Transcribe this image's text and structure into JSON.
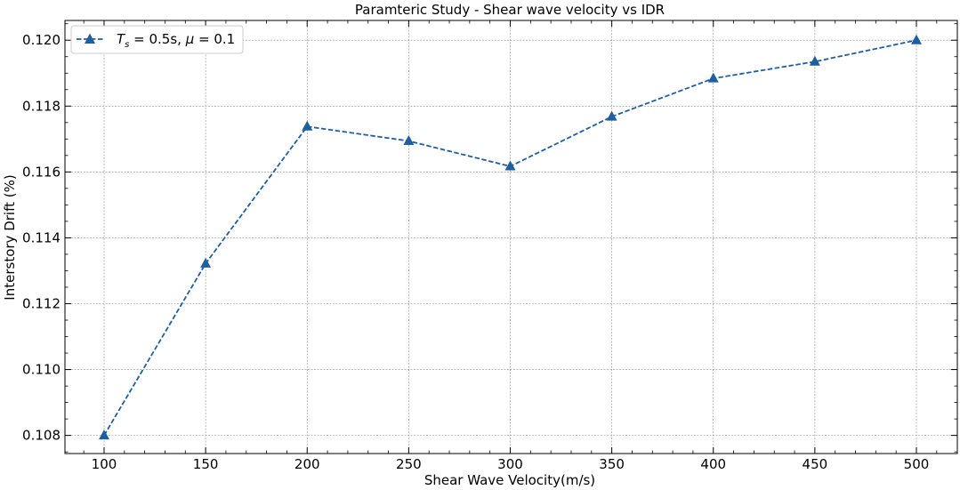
{
  "chart_data": {
    "type": "line",
    "title": "Paramteric Study - Shear wave velocity vs IDR",
    "xlabel": "Shear Wave Velocity(m/s)",
    "ylabel": "Interstory Drift (%)",
    "xlim": [
      80,
      1180
    ],
    "ylim": [
      0.10745,
      0.1206
    ],
    "x_major_ticks": [
      100,
      150,
      200,
      250,
      300,
      350,
      400,
      450,
      500
    ],
    "x_tick_labels": [
      "100",
      "150",
      "200",
      "250",
      "300",
      "350",
      "400",
      "450",
      "500"
    ],
    "y_major_ticks": [
      0.108,
      0.11,
      0.112,
      0.114,
      0.116,
      0.118,
      0.12
    ],
    "y_tick_labels": [
      "0.108",
      "0.110",
      "0.112",
      "0.114",
      "0.116",
      "0.118",
      "0.120"
    ],
    "grid": true,
    "legend_position": "top-left",
    "series": [
      {
        "name_parts": {
          "var": "T",
          "sub": "s",
          "rest": " = 0.5s, ",
          "mu": "μ",
          "tail": " = 0.1"
        },
        "color": "#1f5fa0",
        "line_style": "dashed",
        "marker": "triangle",
        "x": [
          100,
          150,
          200,
          250,
          300,
          350,
          400,
          450,
          500
        ],
        "y": [
          0.108,
          0.11322,
          0.11738,
          0.11694,
          0.11617,
          0.11768,
          0.11884,
          0.11935,
          0.12
        ]
      }
    ]
  }
}
